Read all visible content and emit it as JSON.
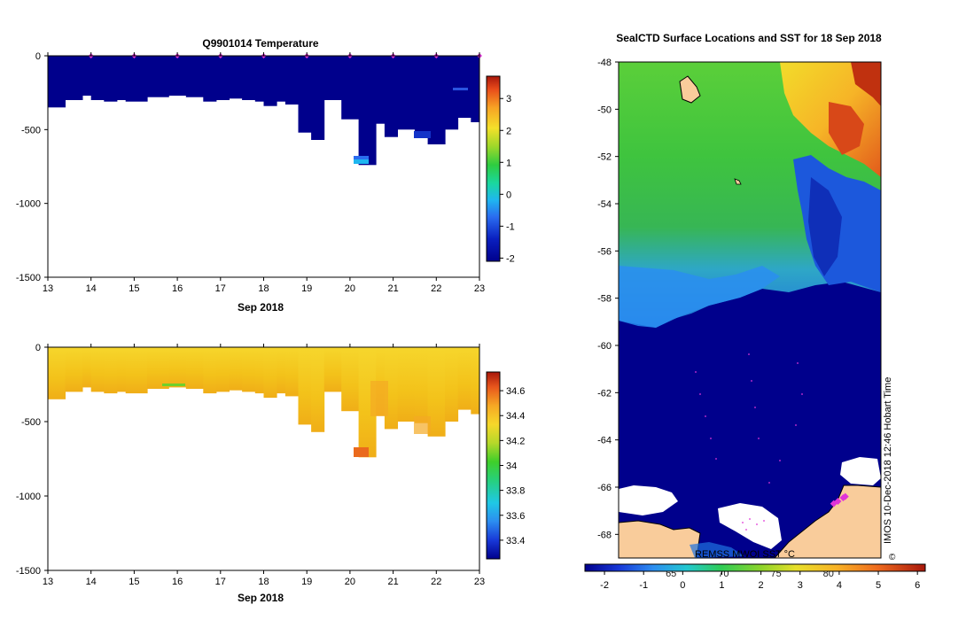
{
  "chart_data": [
    {
      "type": "heatmap",
      "title": "Q9901014  Temperature",
      "xlabel": "Sep 2018",
      "ylabel": "",
      "x_ticks": [
        "13",
        "14",
        "15",
        "16",
        "17",
        "18",
        "19",
        "20",
        "21",
        "22",
        "23"
      ],
      "y_ticks": [
        "0",
        "-500",
        "-1000",
        "-1500"
      ],
      "xlim": [
        13,
        23
      ],
      "ylim": [
        -1500,
        0
      ],
      "colorbar_ticks": [
        "-2",
        "-1",
        "0",
        "1",
        "2",
        "3"
      ],
      "colorbar_range": [
        -2.1,
        3.7
      ],
      "fill_value": -1.8,
      "profile_markers_day": [
        14,
        15,
        16,
        17,
        18,
        19,
        20,
        21,
        22,
        23
      ],
      "profile_bottom_depths": [
        {
          "day": 13.0,
          "depth": -350
        },
        {
          "day": 13.4,
          "depth": -300
        },
        {
          "day": 13.8,
          "depth": -270
        },
        {
          "day": 14.0,
          "depth": -300
        },
        {
          "day": 14.3,
          "depth": -310
        },
        {
          "day": 14.6,
          "depth": -300
        },
        {
          "day": 14.8,
          "depth": -310
        },
        {
          "day": 15.3,
          "depth": -280
        },
        {
          "day": 15.8,
          "depth": -270
        },
        {
          "day": 16.2,
          "depth": -280
        },
        {
          "day": 16.6,
          "depth": -310
        },
        {
          "day": 16.9,
          "depth": -300
        },
        {
          "day": 17.2,
          "depth": -290
        },
        {
          "day": 17.5,
          "depth": -300
        },
        {
          "day": 17.8,
          "depth": -310
        },
        {
          "day": 18.0,
          "depth": -340
        },
        {
          "day": 18.3,
          "depth": -310
        },
        {
          "day": 18.5,
          "depth": -330
        },
        {
          "day": 18.8,
          "depth": -520
        },
        {
          "day": 19.1,
          "depth": -570
        },
        {
          "day": 19.4,
          "depth": -300
        },
        {
          "day": 19.8,
          "depth": -430
        },
        {
          "day": 20.2,
          "depth": -740
        },
        {
          "day": 20.6,
          "depth": -460
        },
        {
          "day": 20.8,
          "depth": -550
        },
        {
          "day": 21.1,
          "depth": -500
        },
        {
          "day": 21.5,
          "depth": -510
        },
        {
          "day": 21.8,
          "depth": -600
        },
        {
          "day": 22.2,
          "depth": -500
        },
        {
          "day": 22.5,
          "depth": -420
        },
        {
          "day": 22.8,
          "depth": -450
        },
        {
          "day": 23.0,
          "depth": -470
        }
      ]
    },
    {
      "type": "heatmap",
      "title": "",
      "xlabel": "Sep 2018",
      "ylabel": "",
      "x_ticks": [
        "13",
        "14",
        "15",
        "16",
        "17",
        "18",
        "19",
        "20",
        "21",
        "22",
        "23"
      ],
      "y_ticks": [
        "0",
        "-500",
        "-1000",
        "-1500"
      ],
      "xlim": [
        13,
        23
      ],
      "ylim": [
        -1500,
        0
      ],
      "colorbar_ticks": [
        "33.4",
        "33.6",
        "33.8",
        "34",
        "34.2",
        "34.4",
        "34.6"
      ],
      "colorbar_range": [
        33.25,
        34.75
      ],
      "fill_value": 34.35,
      "profile_bottom_depths": [
        {
          "day": 13.0,
          "depth": -350
        },
        {
          "day": 13.4,
          "depth": -300
        },
        {
          "day": 13.8,
          "depth": -270
        },
        {
          "day": 14.0,
          "depth": -300
        },
        {
          "day": 14.3,
          "depth": -310
        },
        {
          "day": 14.6,
          "depth": -300
        },
        {
          "day": 14.8,
          "depth": -310
        },
        {
          "day": 15.3,
          "depth": -280
        },
        {
          "day": 15.8,
          "depth": -270
        },
        {
          "day": 16.2,
          "depth": -280
        },
        {
          "day": 16.6,
          "depth": -310
        },
        {
          "day": 16.9,
          "depth": -300
        },
        {
          "day": 17.2,
          "depth": -290
        },
        {
          "day": 17.5,
          "depth": -300
        },
        {
          "day": 17.8,
          "depth": -310
        },
        {
          "day": 18.0,
          "depth": -340
        },
        {
          "day": 18.3,
          "depth": -310
        },
        {
          "day": 18.5,
          "depth": -330
        },
        {
          "day": 18.8,
          "depth": -520
        },
        {
          "day": 19.1,
          "depth": -570
        },
        {
          "day": 19.4,
          "depth": -300
        },
        {
          "day": 19.8,
          "depth": -430
        },
        {
          "day": 20.2,
          "depth": -740
        },
        {
          "day": 20.6,
          "depth": -460
        },
        {
          "day": 20.8,
          "depth": -550
        },
        {
          "day": 21.1,
          "depth": -500
        },
        {
          "day": 21.5,
          "depth": -510
        },
        {
          "day": 21.8,
          "depth": -600
        },
        {
          "day": 22.2,
          "depth": -500
        },
        {
          "day": 22.5,
          "depth": -420
        },
        {
          "day": 22.8,
          "depth": -450
        },
        {
          "day": 23.0,
          "depth": -470
        }
      ]
    },
    {
      "type": "heatmap",
      "title": "SealCTD Surface Locations and SST for 18 Sep 2018",
      "xlabel": "",
      "ylabel": "",
      "lat_ticks": [
        "-48",
        "-50",
        "-52",
        "-54",
        "-56",
        "-58",
        "-60",
        "-62",
        "-64",
        "-66",
        "-68"
      ],
      "ylim": [
        -69,
        -48
      ],
      "lon_ticks": [
        "65",
        "70",
        "75",
        "80"
      ],
      "colorbar_ticks": [
        "-2",
        "-1",
        "0",
        "1",
        "2",
        "3",
        "4",
        "5",
        "6"
      ],
      "colorbar_range": [
        -2.5,
        6.2
      ],
      "product_label": "REMSS MWOI SST °C",
      "timestamp_label": "IMOS 10-Dec-2018 12:46 Hobart Time",
      "copyright_symbol": "©",
      "seal_positions": [
        {
          "lon": 80.5,
          "lat": -66.7
        },
        {
          "lon": 80.9,
          "lat": -66.6
        },
        {
          "lon": 81.4,
          "lat": -66.45
        },
        {
          "lon": 81.6,
          "lat": -66.4
        }
      ]
    }
  ],
  "colors": {
    "deep_blue": "#00008c",
    "salinity_fill": "#f3c21a",
    "marker": "#e033d8",
    "land": "#f9cc9b",
    "ice": "#ffffff"
  }
}
